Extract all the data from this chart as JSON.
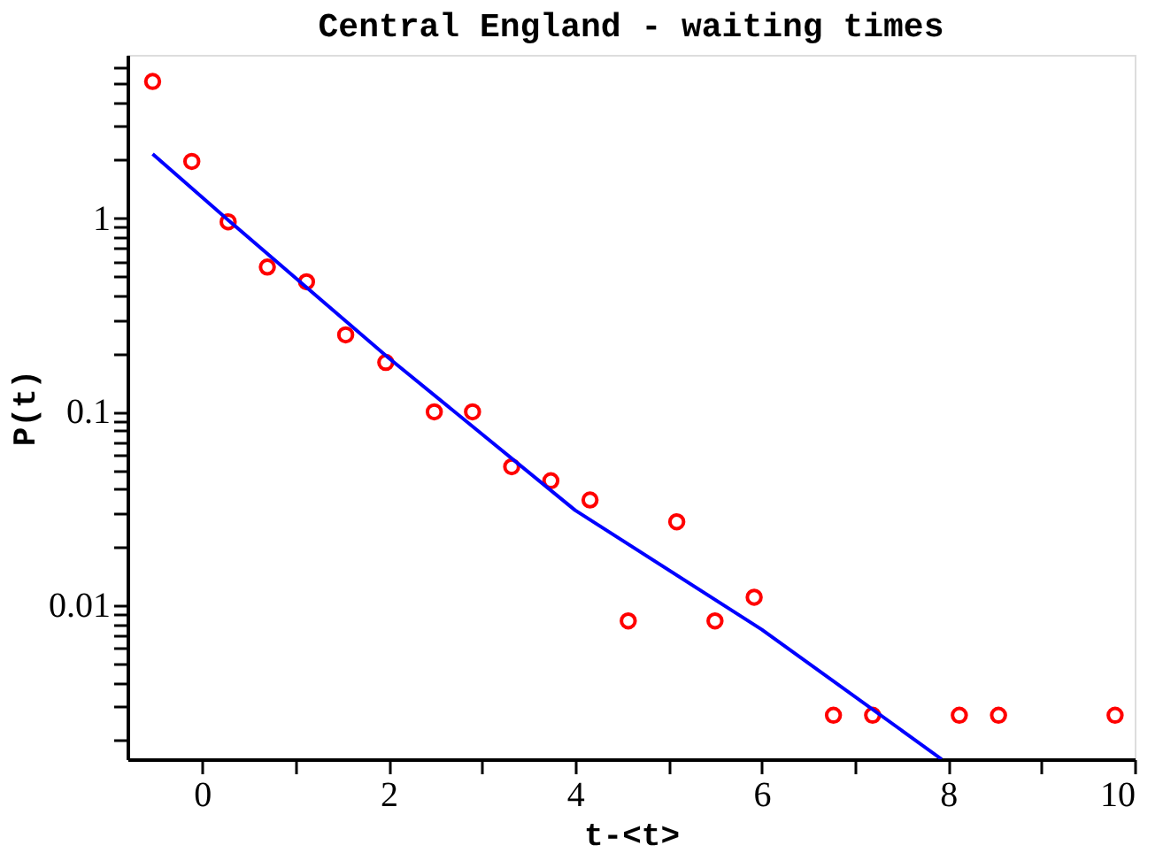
{
  "chart_data": {
    "type": "scatter",
    "title": "Central England - waiting times",
    "xlabel": "t-<t>",
    "ylabel": "P(t)",
    "log": "y",
    "xlim": [
      -0.8,
      10
    ],
    "ylim": [
      0.0016,
      7
    ],
    "xticks": [
      0,
      {
        "value": 1,
        "label": null
      },
      2,
      {
        "value": 3,
        "label": null
      },
      4,
      {
        "value": 5,
        "label": null
      },
      6,
      {
        "value": 7,
        "label": null
      },
      8,
      {
        "value": 9,
        "label": null
      },
      10
    ],
    "yticks": [
      {
        "value": 0.002,
        "label": null
      },
      {
        "value": 0.003,
        "label": null
      },
      {
        "value": 0.004,
        "label": null
      },
      {
        "value": 0.005,
        "label": null
      },
      {
        "value": 0.006,
        "label": null
      },
      {
        "value": 0.007,
        "label": null
      },
      {
        "value": 0.008,
        "label": null
      },
      {
        "value": 0.009,
        "label": null
      },
      0.01,
      {
        "value": 0.02,
        "label": null
      },
      {
        "value": 0.03,
        "label": null
      },
      {
        "value": 0.04,
        "label": null
      },
      {
        "value": 0.05,
        "label": null
      },
      {
        "value": 0.06,
        "label": null
      },
      {
        "value": 0.07,
        "label": null
      },
      {
        "value": 0.08,
        "label": null
      },
      {
        "value": 0.09,
        "label": null
      },
      0.1,
      {
        "value": 0.2,
        "label": null
      },
      {
        "value": 0.3,
        "label": null
      },
      {
        "value": 0.4,
        "label": null
      },
      {
        "value": 0.5,
        "label": null
      },
      {
        "value": 0.6,
        "label": null
      },
      {
        "value": 0.7,
        "label": null
      },
      {
        "value": 0.8,
        "label": null
      },
      {
        "value": 0.9,
        "label": null
      },
      1,
      {
        "value": 2,
        "label": null
      },
      {
        "value": 3,
        "label": null
      },
      {
        "value": 4,
        "label": null
      },
      {
        "value": 5,
        "label": null
      },
      {
        "value": 6,
        "label": null
      }
    ],
    "grid": false,
    "series": [
      {
        "marker": "circle",
        "color": "#ff0000",
        "x": [
          -0.53,
          -0.11,
          0.28,
          0.7,
          1.12,
          1.54,
          1.97,
          2.49,
          2.9,
          3.32,
          3.74,
          4.16,
          4.57,
          5.09,
          5.5,
          5.92,
          6.77,
          7.19,
          8.12,
          8.54,
          9.79
        ],
        "values": [
          5.1,
          1.97,
          0.96,
          0.56,
          0.47,
          0.25,
          0.18,
          0.1,
          0.1,
          0.052,
          0.044,
          0.035,
          0.0083,
          0.027,
          0.0083,
          0.011,
          0.0027,
          0.0027,
          0.0027,
          0.0027,
          0.0027
        ]
      },
      {
        "type": "line",
        "line_style": "solid",
        "color": "#0000ff",
        "x": [
          -0.53,
          0.28,
          2,
          4,
          6,
          7.93
        ],
        "values": [
          2.15,
          0.98,
          0.19,
          0.031,
          0.0075,
          0.0016
        ]
      }
    ]
  }
}
